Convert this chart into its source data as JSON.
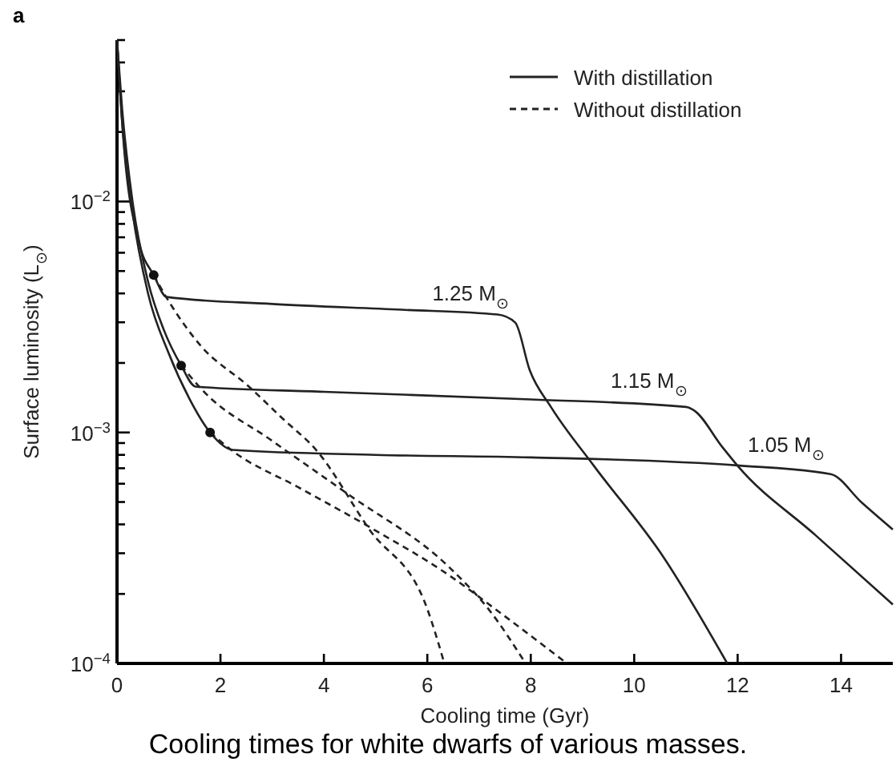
{
  "chart_data": {
    "type": "line",
    "xlabel": "Cooling time (Gyr)",
    "ylabel": "Surface luminosity (L$_{⊙}$)",
    "log": "y",
    "xlim": [
      0,
      15
    ],
    "ylim": [
      0.0001,
      0.05
    ],
    "xticks": [
      0,
      2,
      4,
      6,
      8,
      10,
      12,
      14
    ],
    "yticks": [
      {
        "value": 0.0001,
        "label": "10$^{−4}$"
      },
      {
        "value": 0.0002,
        "label": null
      },
      {
        "value": 0.0003,
        "label": null
      },
      {
        "value": 0.0004,
        "label": null
      },
      {
        "value": 0.0005,
        "label": null
      },
      {
        "value": 0.0006,
        "label": null
      },
      {
        "value": 0.0007,
        "label": null
      },
      {
        "value": 0.0008,
        "label": null
      },
      {
        "value": 0.0009,
        "label": null
      },
      {
        "value": 0.001,
        "label": "10$^{−3}$"
      },
      {
        "value": 0.002,
        "label": null
      },
      {
        "value": 0.003,
        "label": null
      },
      {
        "value": 0.004,
        "label": null
      },
      {
        "value": 0.005,
        "label": null
      },
      {
        "value": 0.006,
        "label": null
      },
      {
        "value": 0.007,
        "label": null
      },
      {
        "value": 0.008,
        "label": null
      },
      {
        "value": 0.009,
        "label": null
      },
      {
        "value": 0.01,
        "label": "10$^{−2}$"
      },
      {
        "value": 0.02,
        "label": null
      },
      {
        "value": 0.03,
        "label": null
      },
      {
        "value": 0.04,
        "label": null
      },
      {
        "value": 0.05,
        "label": null
      }
    ],
    "grid": false,
    "legend": "top right",
    "series": [
      {
        "name": "With distillation",
        "color": "#222222",
        "line_style": "solid",
        "x": [
          0,
          0.12,
          0.43,
          0.71,
          0.96,
          3,
          5.5,
          7.36,
          7.7,
          7.98,
          8.39,
          9.22,
          10.56,
          11.8
        ],
        "values": [
          0.05,
          0.019,
          0.0066,
          0.0048,
          0.00386,
          0.0036,
          0.0034,
          0.00324,
          0.00299,
          0.00186,
          0.00129,
          0.000717,
          0.00029,
          0.0001
        ]
      },
      {
        "color": "#222222",
        "line_style": "solid",
        "x": [
          0,
          0.1,
          0.3,
          0.6,
          0.9,
          1.24,
          1.52,
          4,
          8,
          11,
          11.15,
          11.7,
          12,
          13.5,
          15
        ],
        "values": [
          0.05,
          0.025,
          0.01,
          0.0045,
          0.0028,
          0.00195,
          0.00158,
          0.0015,
          0.00139,
          0.00129,
          0.00125,
          0.000867,
          0.000717,
          0.00036,
          0.00018
        ]
      },
      {
        "color": "#222222",
        "line_style": "solid",
        "x": [
          0,
          0.1,
          0.3,
          0.6,
          1,
          1.4,
          1.8,
          2.24,
          5,
          8,
          12,
          13.8,
          14.4,
          15
        ],
        "values": [
          0.05,
          0.022,
          0.009,
          0.004,
          0.0022,
          0.0014,
          0.001,
          0.00084,
          0.0008,
          0.00078,
          0.00072,
          0.00066,
          0.000497,
          0.00038
        ]
      },
      {
        "name": "Without distillation",
        "color": "#222222",
        "line_style": "dashed",
        "x": [
          0.71,
          1,
          1.6,
          2.55,
          3.2,
          3.85,
          4.88,
          6,
          6.33
        ],
        "values": [
          0.0048,
          0.0037,
          0.0024,
          0.00158,
          0.00115,
          0.00084,
          0.00038,
          0.000172,
          0.0001
        ]
      },
      {
        "color": "#222222",
        "line_style": "dashed",
        "x": [
          1.24,
          1.67,
          3,
          4.47,
          6.43,
          7.2,
          7.9
        ],
        "values": [
          0.00195,
          0.00151,
          0.00092,
          0.00054,
          0.00026,
          0.00017,
          0.0001
        ]
      },
      {
        "color": "#222222",
        "line_style": "dashed",
        "x": [
          1.8,
          2.24,
          3.5,
          4.88,
          6.43,
          7.5,
          8.7
        ],
        "values": [
          0.001,
          0.00083,
          0.00058,
          0.00039,
          0.00024,
          0.00016,
          0.0001
        ]
      },
      {
        "type": "scatter",
        "marker": "circle",
        "color": "#111111",
        "x": [
          0.71,
          1.24,
          1.8
        ],
        "values": [
          0.0048,
          0.00195,
          0.001
        ]
      }
    ],
    "annotations": [
      "a",
      "1.25 M$_{⊙}$",
      "1.15 M$_{⊙}$",
      "1.05 M$_{⊙}$",
      "Cooling times for white dwarfs of various masses."
    ]
  }
}
